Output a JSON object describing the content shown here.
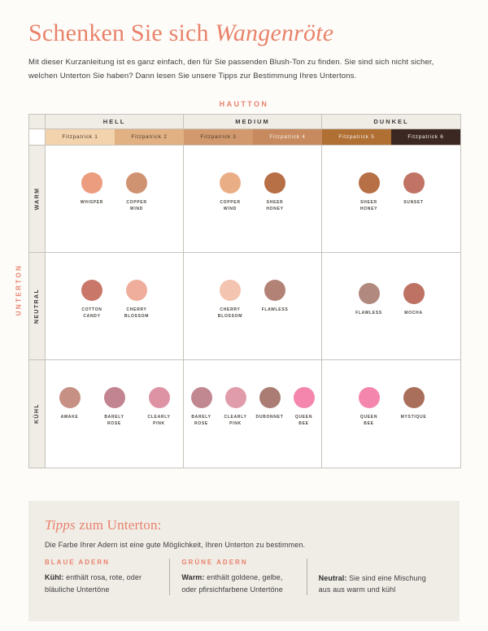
{
  "palette": {
    "accent": "#E8816B",
    "beige": "#F0EDE6",
    "border": "#C7C3BC",
    "page_bg": "#FDFCF9",
    "body_text": "#3D3D3D"
  },
  "page": {
    "title_regular": "Schenken Sie sich ",
    "title_italic": "Wangenröte",
    "intro": "Mit dieser Kurzanleitung ist es ganz einfach, den für Sie passenden Blush-Ton zu finden. Sie sind sich nicht sicher, welchen Unterton Sie haben? Dann lesen Sie unsere Tipps zur Bestimmung Ihres Untertons."
  },
  "matrix": {
    "column_axis_label": "HAUTTON",
    "row_axis_label": "UNTERTON",
    "column_groups": [
      {
        "label": "HELL",
        "fitzpatrick": [
          {
            "label": "Fitzpatrick 1",
            "color": "#F3D2AE",
            "text": "dark"
          },
          {
            "label": "Fitzpatrick 2",
            "color": "#E1B083",
            "text": "dark"
          }
        ]
      },
      {
        "label": "MEDIUM",
        "fitzpatrick": [
          {
            "label": "Fitzpatrick 3",
            "color": "#D1996D",
            "text": "dark"
          },
          {
            "label": "Fitzpatrick 4",
            "color": "#C78A5E",
            "text": "light"
          }
        ]
      },
      {
        "label": "DUNKEL",
        "fitzpatrick": [
          {
            "label": "Fitzpatrick 5",
            "color": "#B06F33",
            "text": "light"
          },
          {
            "label": "Fitzpatrick 6",
            "color": "#3C2823",
            "text": "light"
          }
        ]
      }
    ],
    "rows": [
      {
        "label": "WARM",
        "cells": [
          {
            "swatches": [
              {
                "name": "WHISPER",
                "color": "#EC9C7F"
              },
              {
                "name": "COPPER\nWIND",
                "color": "#D09372"
              }
            ]
          },
          {
            "swatches": [
              {
                "name": "COPPER\nWIND",
                "color": "#EAAE87"
              },
              {
                "name": "SHEER\nHONEY",
                "color": "#B76F46"
              }
            ]
          },
          {
            "swatches": [
              {
                "name": "SHEER\nHONEY",
                "color": "#B76F46"
              },
              {
                "name": "SUNSET",
                "color": "#C17365"
              }
            ]
          }
        ]
      },
      {
        "label": "NEUTRAL",
        "cells": [
          {
            "swatches": [
              {
                "name": "COTTON\nCANDY",
                "color": "#C97769"
              },
              {
                "name": "CHERRY\nBLOSSOM",
                "color": "#EFAE9B"
              }
            ]
          },
          {
            "swatches": [
              {
                "name": "CHERRY\nBLOSSOM",
                "color": "#F3C4AF"
              },
              {
                "name": "FLAWLESS",
                "color": "#B38276"
              }
            ]
          },
          {
            "swatches": [
              {
                "name": "FLAWLESS",
                "color": "#B2897E"
              },
              {
                "name": "MOCHA",
                "color": "#BE7263"
              }
            ]
          }
        ]
      },
      {
        "label": "KÜHL",
        "cells": [
          {
            "swatches": [
              {
                "name": "AWAKE",
                "color": "#C69184"
              },
              {
                "name": "BARELY\nROSE",
                "color": "#C28490"
              },
              {
                "name": "CLEARLY\nPINK",
                "color": "#DE93A5"
              }
            ]
          },
          {
            "swatches": [
              {
                "name": "BARELY\nROSE",
                "color": "#C28892"
              },
              {
                "name": "CLEARLY\nPINK",
                "color": "#E09CAB"
              },
              {
                "name": "DUBONNET",
                "color": "#AA7C73"
              },
              {
                "name": "QUEEN\nBEE",
                "color": "#F486AE"
              }
            ]
          },
          {
            "swatches": [
              {
                "name": "QUEEN\nBEE",
                "color": "#F486AE"
              },
              {
                "name": "MYSTIQUE",
                "color": "#AA6F5B"
              }
            ]
          }
        ]
      }
    ]
  },
  "tips": {
    "title_italic": "Tipps",
    "title_rest": " zum Unterton:",
    "intro": "Die Farbe Ihrer Adern ist eine gute Möglichkeit, Ihren Unterton zu bestimmen.",
    "columns": [
      {
        "header": "BLAUE ADERN",
        "lead": "Kühl:",
        "body": " enthält rosa, rote, oder bläuliche Untertöne"
      },
      {
        "header": "GRÜNE ADERN",
        "lead": "Warm:",
        "body": " enthält goldene, gelbe, oder pfirsichfarbene Untertöne"
      },
      {
        "header": "",
        "lead": "Neutral:",
        "body": " Sie sind eine Mischung aus aus warm und kühl"
      }
    ]
  }
}
